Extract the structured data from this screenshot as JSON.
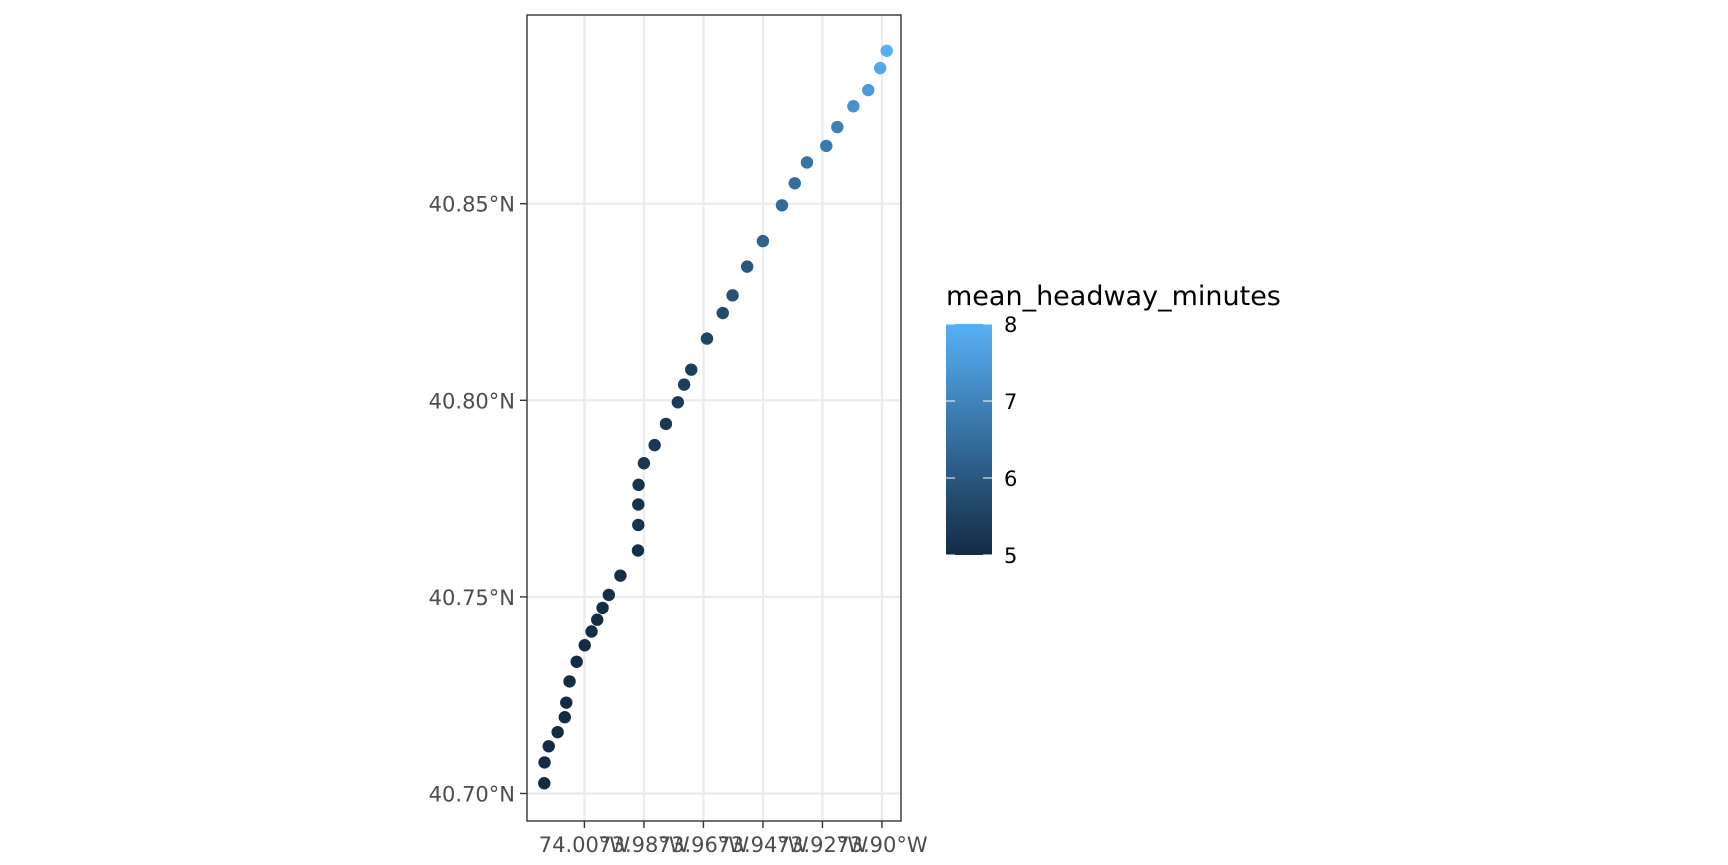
{
  "chart_data": {
    "type": "scatter",
    "title": "",
    "xlabel": "",
    "ylabel": "",
    "x_ticks": [
      {
        "value": -74.0,
        "label": "74.00°W"
      },
      {
        "value": -73.98,
        "label": "73.98°W"
      },
      {
        "value": -73.96,
        "label": "73.96°W"
      },
      {
        "value": -73.94,
        "label": "73.94°W"
      },
      {
        "value": -73.92,
        "label": "73.92°W"
      },
      {
        "value": -73.9,
        "label": "73.90°W"
      }
    ],
    "y_ticks": [
      {
        "value": 40.7,
        "label": "40.70°N"
      },
      {
        "value": 40.75,
        "label": "40.75°N"
      },
      {
        "value": 40.8,
        "label": "40.80°N"
      },
      {
        "value": 40.85,
        "label": "40.85°N"
      }
    ],
    "xlim": [
      -74.0193,
      -73.8936
    ],
    "ylim": [
      40.693,
      40.898
    ],
    "grid": true,
    "legend": {
      "title": "mean_headway_minutes",
      "placement": "right",
      "min": 5,
      "max": 8,
      "labels": [
        {
          "value": 8,
          "label": "8"
        },
        {
          "value": 7,
          "label": "7"
        },
        {
          "value": 6,
          "label": "6"
        },
        {
          "value": 5,
          "label": "5"
        }
      ],
      "color_low": "#132b43",
      "color_high": "#56b1f7"
    },
    "points": [
      {
        "lon": -74.0135,
        "lat": 40.7026,
        "headway": 5.0
      },
      {
        "lon": -74.0134,
        "lat": 40.7079,
        "headway": 5.0
      },
      {
        "lon": -74.012,
        "lat": 40.712,
        "headway": 5.0
      },
      {
        "lon": -74.009,
        "lat": 40.7156,
        "headway": 5.0
      },
      {
        "lon": -74.0066,
        "lat": 40.7194,
        "headway": 5.0
      },
      {
        "lon": -74.0061,
        "lat": 40.7231,
        "headway": 5.0
      },
      {
        "lon": -74.005,
        "lat": 40.7285,
        "headway": 5.0
      },
      {
        "lon": -74.0026,
        "lat": 40.7335,
        "headway": 5.0
      },
      {
        "lon": -73.9999,
        "lat": 40.7377,
        "headway": 5.0
      },
      {
        "lon": -73.9976,
        "lat": 40.7412,
        "headway": 5.05
      },
      {
        "lon": -73.9957,
        "lat": 40.7442,
        "headway": 5.05
      },
      {
        "lon": -73.9939,
        "lat": 40.7472,
        "headway": 5.05
      },
      {
        "lon": -73.9918,
        "lat": 40.7505,
        "headway": 5.1
      },
      {
        "lon": -73.9879,
        "lat": 40.7554,
        "headway": 5.1
      },
      {
        "lon": -73.982,
        "lat": 40.7618,
        "headway": 5.1
      },
      {
        "lon": -73.9819,
        "lat": 40.7683,
        "headway": 5.2
      },
      {
        "lon": -73.9819,
        "lat": 40.7735,
        "headway": 5.2
      },
      {
        "lon": -73.9818,
        "lat": 40.7785,
        "headway": 5.2
      },
      {
        "lon": -73.98,
        "lat": 40.784,
        "headway": 5.25
      },
      {
        "lon": -73.9764,
        "lat": 40.7886,
        "headway": 5.3
      },
      {
        "lon": -73.9726,
        "lat": 40.794,
        "headway": 5.3
      },
      {
        "lon": -73.9686,
        "lat": 40.7995,
        "headway": 5.35
      },
      {
        "lon": -73.9665,
        "lat": 40.804,
        "headway": 5.4
      },
      {
        "lon": -73.9641,
        "lat": 40.8078,
        "headway": 5.45
      },
      {
        "lon": -73.9588,
        "lat": 40.8157,
        "headway": 5.55
      },
      {
        "lon": -73.9535,
        "lat": 40.8222,
        "headway": 5.7
      },
      {
        "lon": -73.9502,
        "lat": 40.8267,
        "headway": 5.85
      },
      {
        "lon": -73.9453,
        "lat": 40.834,
        "headway": 6.0
      },
      {
        "lon": -73.94,
        "lat": 40.8405,
        "headway": 6.2
      },
      {
        "lon": -73.9336,
        "lat": 40.8496,
        "headway": 6.4
      },
      {
        "lon": -73.9293,
        "lat": 40.8552,
        "headway": 6.5
      },
      {
        "lon": -73.9252,
        "lat": 40.8605,
        "headway": 6.6
      },
      {
        "lon": -73.9187,
        "lat": 40.8647,
        "headway": 6.75
      },
      {
        "lon": -73.915,
        "lat": 40.8695,
        "headway": 6.9
      },
      {
        "lon": -73.9096,
        "lat": 40.8748,
        "headway": 7.3
      },
      {
        "lon": -73.9046,
        "lat": 40.8789,
        "headway": 7.5
      },
      {
        "lon": -73.9006,
        "lat": 40.8845,
        "headway": 7.8
      },
      {
        "lon": -73.8984,
        "lat": 40.8889,
        "headway": 8.0
      }
    ]
  }
}
